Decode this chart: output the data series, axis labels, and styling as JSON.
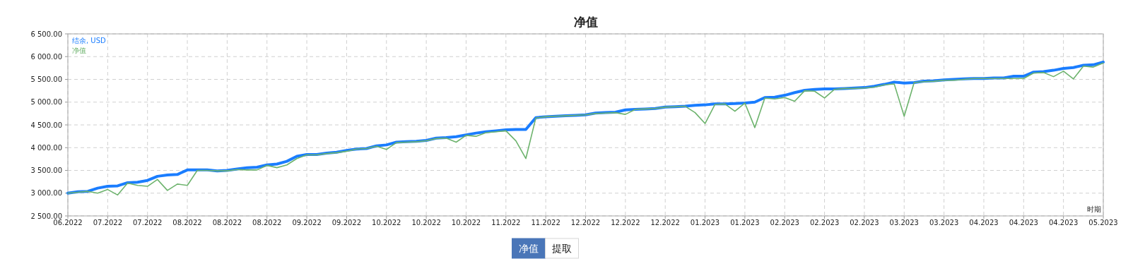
{
  "chart_data": {
    "type": "line",
    "title": "净值",
    "xlabel": "时期",
    "categories": [
      "06.2022",
      null,
      null,
      null,
      "07.2022",
      null,
      null,
      null,
      "07.2022",
      null,
      null,
      null,
      "08.2022",
      null,
      null,
      null,
      "08.2022",
      null,
      null,
      null,
      "08.2022",
      null,
      null,
      null,
      "09.2022",
      null,
      null,
      null,
      "09.2022",
      null,
      null,
      null,
      "10.2022",
      null,
      null,
      null,
      "10.2022",
      null,
      null,
      null,
      "10.2022",
      null,
      null,
      null,
      "11.2022",
      null,
      null,
      null,
      "11.2022",
      null,
      null,
      null,
      "12.2022",
      null,
      null,
      null,
      "12.2022",
      null,
      null,
      null,
      "12.2022",
      null,
      null,
      null,
      "01.2023",
      null,
      null,
      null,
      "01.2023",
      null,
      null,
      null,
      "02.2023",
      null,
      null,
      null,
      "02.2023",
      null,
      null,
      null,
      "02.2023",
      null,
      null,
      null,
      "03.2023",
      null,
      null,
      null,
      "03.2023",
      null,
      null,
      null,
      "04.2023",
      null,
      null,
      null,
      "04.2023",
      null,
      null,
      null,
      "04.2023",
      null,
      null,
      null,
      "05.2023"
    ],
    "ylim": [
      2500,
      6500
    ],
    "yticks": [
      {
        "value": 2500,
        "label": "2 500.00"
      },
      {
        "value": 3000,
        "label": "3 000.00"
      },
      {
        "value": 3500,
        "label": "3 500.00"
      },
      {
        "value": 4000,
        "label": "4 000.00"
      },
      {
        "value": 4500,
        "label": "4 500.00"
      },
      {
        "value": 5000,
        "label": "5 000.00"
      },
      {
        "value": 5500,
        "label": "5 500.00"
      },
      {
        "value": 6000,
        "label": "6 000.00"
      },
      {
        "value": 6500,
        "label": "6 500.00"
      }
    ],
    "grid": true,
    "legend": "top left",
    "series": [
      {
        "name": "结余, USD",
        "color": "#1a7dff",
        "values": [
          3000,
          3030,
          3040,
          3110,
          3150,
          3160,
          3230,
          3240,
          3280,
          3370,
          3400,
          3410,
          3510,
          3510,
          3510,
          3490,
          3500,
          3530,
          3560,
          3570,
          3620,
          3640,
          3700,
          3810,
          3850,
          3850,
          3880,
          3900,
          3940,
          3970,
          3980,
          4040,
          4060,
          4120,
          4130,
          4140,
          4160,
          4210,
          4220,
          4240,
          4280,
          4320,
          4350,
          4370,
          4390,
          4400,
          4400,
          4660,
          4680,
          4690,
          4700,
          4710,
          4720,
          4760,
          4770,
          4780,
          4830,
          4840,
          4850,
          4860,
          4890,
          4900,
          4910,
          4930,
          4940,
          4960,
          4960,
          4970,
          4980,
          5000,
          5100,
          5110,
          5150,
          5210,
          5260,
          5280,
          5290,
          5290,
          5300,
          5310,
          5320,
          5350,
          5390,
          5440,
          5420,
          5430,
          5460,
          5470,
          5490,
          5500,
          5510,
          5520,
          5520,
          5530,
          5530,
          5570,
          5570,
          5660,
          5670,
          5700,
          5740,
          5760,
          5810,
          5820,
          5880
        ]
      },
      {
        "name": "净值",
        "color": "#6db36d",
        "values": [
          3000,
          3020,
          3040,
          3000,
          3080,
          2960,
          3220,
          3170,
          3150,
          3300,
          3060,
          3200,
          3170,
          3500,
          3500,
          3490,
          3490,
          3520,
          3510,
          3510,
          3610,
          3560,
          3620,
          3760,
          3840,
          3840,
          3870,
          3890,
          3920,
          3970,
          3980,
          4030,
          3960,
          4110,
          4120,
          4130,
          4150,
          4200,
          4210,
          4120,
          4270,
          4250,
          4330,
          4350,
          4370,
          4150,
          3760,
          4650,
          4680,
          4690,
          4700,
          4710,
          4720,
          4750,
          4760,
          4770,
          4730,
          4840,
          4850,
          4860,
          4890,
          4900,
          4910,
          4770,
          4530,
          4950,
          4960,
          4800,
          4980,
          4440,
          5090,
          5070,
          5100,
          5020,
          5250,
          5240,
          5090,
          5280,
          5300,
          5300,
          5310,
          5330,
          5380,
          5400,
          4690,
          5430,
          5450,
          5460,
          5480,
          5480,
          5500,
          5520,
          5520,
          5520,
          5520,
          5520,
          5520,
          5640,
          5650,
          5560,
          5680,
          5510,
          5790,
          5770,
          5860
        ]
      }
    ],
    "annotations": [
      "净值",
      "提取"
    ]
  }
}
